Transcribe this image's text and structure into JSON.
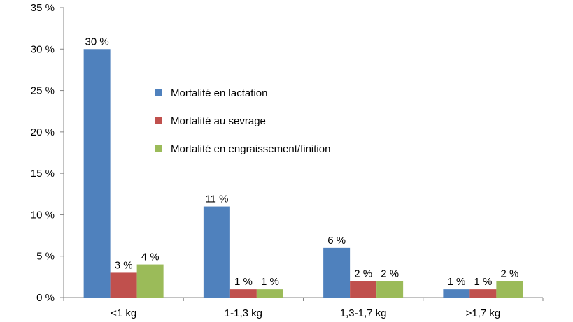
{
  "chart_data": {
    "type": "bar",
    "title": "",
    "xlabel": "",
    "ylabel": "",
    "ylim": [
      0,
      35
    ],
    "ytick_step": 5,
    "ytick_suffix": " %",
    "categories": [
      "<1 kg",
      "1-1,3 kg",
      "1,3-1,7 kg",
      ">1,7 kg"
    ],
    "series": [
      {
        "name": "Mortalité en lactation",
        "color": "#4F81BD",
        "values": [
          30,
          11,
          6,
          1
        ],
        "labels": [
          "30 %",
          "11 %",
          "6 %",
          "1 %"
        ]
      },
      {
        "name": "Mortalité au sevrage",
        "color": "#C0504D",
        "values": [
          3,
          1,
          2,
          1
        ],
        "labels": [
          "3 %",
          "1 %",
          "2 %",
          "1 %"
        ]
      },
      {
        "name": "Mortalité en engraissement/finition",
        "color": "#9BBB59",
        "values": [
          4,
          1,
          2,
          2
        ],
        "labels": [
          "4 %",
          "1 %",
          "2 %",
          "2 %"
        ]
      }
    ],
    "legend_position": "center",
    "grid": false
  }
}
